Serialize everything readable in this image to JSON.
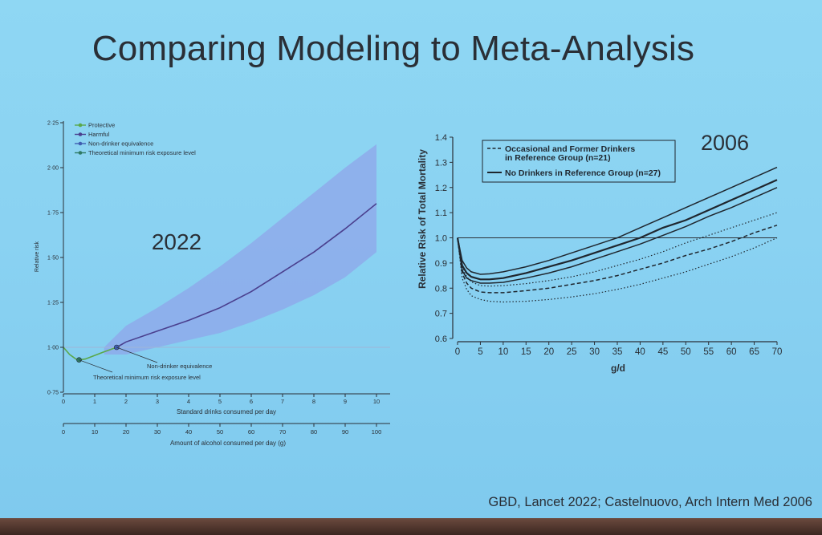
{
  "slide": {
    "title": "Comparing Modeling to Meta-Analysis",
    "citation": "GBD, Lancet 2022; Castelnuovo, Arch Intern Med 2006"
  },
  "chart_data": [
    {
      "type": "line",
      "year_label": "2022",
      "ylabel": "Relative risk",
      "xlabel": "Standard drinks consumed per day",
      "x2label": "Amount of alcohol consumed per day (g)",
      "ylim": [
        0.75,
        2.25
      ],
      "xlim": [
        0,
        10
      ],
      "yticks": [
        "0·75",
        "1·00",
        "1·25",
        "1·50",
        "1·75",
        "2·00",
        "2·25"
      ],
      "xticks": [
        "0",
        "1",
        "2",
        "3",
        "4",
        "5",
        "6",
        "7",
        "8",
        "9",
        "10"
      ],
      "x2ticks": [
        "0",
        "10",
        "20",
        "30",
        "40",
        "50",
        "60",
        "70",
        "80",
        "90",
        "100"
      ],
      "legend": {
        "position": "top-left",
        "entries": [
          {
            "label": "Protective",
            "color": "#5aa84a"
          },
          {
            "label": "Harmful",
            "color": "#4a3f8e"
          },
          {
            "label": "Non-drinker equivalence",
            "color": "#3f5db0"
          },
          {
            "label": "Theoretical minimum risk exposure level",
            "color": "#2f7a64"
          }
        ]
      },
      "reference_line": 1.0,
      "series": [
        {
          "name": "Protective",
          "color": "#5aa84a",
          "x": [
            0,
            0.2,
            0.4,
            0.5,
            0.7,
            1.0,
            1.3,
            1.7
          ],
          "y": [
            1.0,
            0.96,
            0.935,
            0.93,
            0.935,
            0.955,
            0.975,
            1.0
          ]
        },
        {
          "name": "Harmful",
          "color": "#4a3f8e",
          "x": [
            1.7,
            2,
            3,
            4,
            5,
            6,
            7,
            8,
            9,
            10
          ],
          "y": [
            1.0,
            1.03,
            1.09,
            1.15,
            1.22,
            1.31,
            1.42,
            1.53,
            1.66,
            1.8
          ]
        }
      ],
      "uncertainty": {
        "x": [
          1.3,
          2,
          3,
          4,
          5,
          6,
          7,
          8,
          9,
          10
        ],
        "upper": [
          1.0,
          1.12,
          1.22,
          1.33,
          1.45,
          1.58,
          1.72,
          1.86,
          2.0,
          2.13
        ],
        "lower": [
          0.96,
          0.96,
          1.0,
          1.04,
          1.08,
          1.14,
          1.21,
          1.29,
          1.39,
          1.53
        ],
        "color": "#8fa6ea"
      },
      "points": [
        {
          "x": 0.5,
          "y": 0.93,
          "label": "Theoretical minimum risk exposure level",
          "color": "#2f7a64"
        },
        {
          "x": 1.7,
          "y": 1.0,
          "label": "Non-drinker equivalence",
          "color": "#3f5db0"
        }
      ]
    },
    {
      "type": "line",
      "year_label": "2006",
      "ylabel": "Relative Risk of Total Mortality",
      "xlabel": "g/d",
      "ylim": [
        0.6,
        1.4
      ],
      "xlim": [
        0,
        70
      ],
      "yticks": [
        "0.6",
        "0.7",
        "0.8",
        "0.9",
        "1.0",
        "1.1",
        "1.2",
        "1.3",
        "1.4"
      ],
      "xticks": [
        "0",
        "5",
        "10",
        "15",
        "20",
        "25",
        "30",
        "35",
        "40",
        "45",
        "50",
        "55",
        "60",
        "65",
        "70"
      ],
      "legend": {
        "position": "top-left",
        "entries": [
          {
            "label_lines": [
              "Occasional and Former Drinkers",
              "in Reference Group (n=21)"
            ],
            "style": "dashed"
          },
          {
            "label_lines": [
              "No Drinkers in Reference Group (n=27)"
            ],
            "style": "solid"
          }
        ]
      },
      "reference_line": 1.0,
      "series": [
        {
          "name": "No Drinkers in Reference Group (n=27)",
          "style": "solid",
          "x": [
            0,
            1,
            2,
            3,
            5,
            7,
            10,
            15,
            20,
            25,
            30,
            35,
            40,
            45,
            50,
            55,
            60,
            65,
            70
          ],
          "y": [
            1.0,
            0.89,
            0.86,
            0.845,
            0.835,
            0.835,
            0.84,
            0.86,
            0.885,
            0.91,
            0.94,
            0.97,
            1.0,
            1.04,
            1.07,
            1.11,
            1.15,
            1.19,
            1.23
          ],
          "ci_upper": [
            1.0,
            0.91,
            0.88,
            0.865,
            0.855,
            0.857,
            0.865,
            0.885,
            0.91,
            0.94,
            0.97,
            1.0,
            1.04,
            1.08,
            1.12,
            1.16,
            1.2,
            1.24,
            1.28
          ],
          "ci_lower": [
            1.0,
            0.87,
            0.84,
            0.83,
            0.82,
            0.82,
            0.823,
            0.84,
            0.86,
            0.885,
            0.915,
            0.945,
            0.975,
            1.01,
            1.045,
            1.085,
            1.12,
            1.16,
            1.2
          ]
        },
        {
          "name": "Occasional and Former Drinkers in Reference Group (n=21)",
          "style": "dashed",
          "x": [
            0,
            1,
            2,
            3,
            5,
            7,
            10,
            15,
            20,
            25,
            30,
            35,
            40,
            45,
            50,
            55,
            60,
            65,
            70
          ],
          "y": [
            1.0,
            0.86,
            0.82,
            0.8,
            0.785,
            0.782,
            0.782,
            0.79,
            0.8,
            0.815,
            0.83,
            0.85,
            0.875,
            0.9,
            0.93,
            0.955,
            0.985,
            1.02,
            1.05
          ],
          "ci_upper": [
            1.0,
            0.88,
            0.845,
            0.825,
            0.81,
            0.808,
            0.81,
            0.818,
            0.83,
            0.845,
            0.865,
            0.89,
            0.915,
            0.945,
            0.98,
            1.01,
            1.04,
            1.07,
            1.1
          ],
          "ci_lower": [
            1.0,
            0.84,
            0.795,
            0.77,
            0.755,
            0.748,
            0.745,
            0.748,
            0.755,
            0.765,
            0.778,
            0.795,
            0.815,
            0.84,
            0.865,
            0.895,
            0.925,
            0.96,
            1.0
          ]
        }
      ]
    }
  ]
}
